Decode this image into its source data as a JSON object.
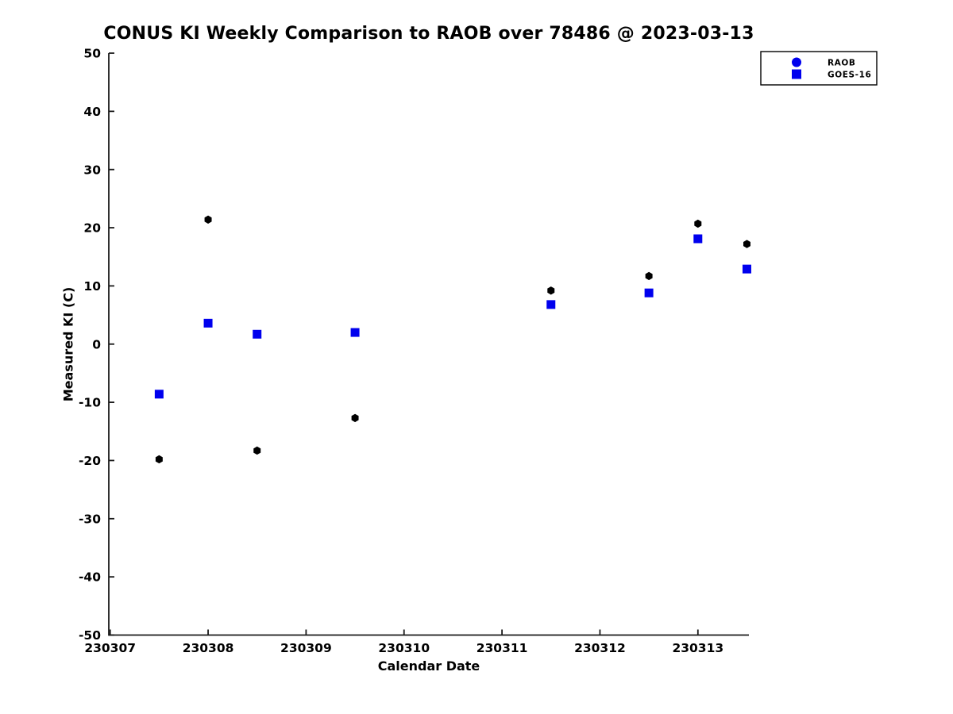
{
  "chart_data": {
    "type": "scatter",
    "title": "CONUS KI Weekly Comparison to RAOB over 78486 @ 2023-03-13",
    "xlabel": "Calendar Date",
    "ylabel": "Measured KI (C)",
    "xlim": [
      230307,
      230313.52
    ],
    "ylim": [
      -50,
      50
    ],
    "grid": false,
    "x_tick_labels": [
      "230307",
      "230308",
      "230309",
      "230310",
      "230311",
      "230312",
      "230313"
    ],
    "x_ticks": [
      230307,
      230308,
      230309,
      230310,
      230311,
      230312,
      230313
    ],
    "y_ticks": [
      50,
      40,
      30,
      20,
      10,
      0,
      -10,
      -20,
      -30,
      -40,
      -50
    ],
    "y_tick_labels": [
      "50",
      "40",
      "30",
      "20",
      "10",
      "0",
      "-10",
      "-20",
      "-30",
      "-40",
      "-50"
    ],
    "x": [
      230307.5,
      230308.0,
      230308.5,
      230309.5,
      230311.5,
      230312.5,
      230313.0,
      230313.5
    ],
    "series": [
      {
        "name": "RAOB",
        "marker": "hexagon",
        "plot_color": "#000000",
        "legend_marker": "circle",
        "legend_color": "#0000ee",
        "values": [
          -19.8,
          21.4,
          -18.3,
          -12.7,
          9.2,
          11.7,
          20.7,
          17.2
        ]
      },
      {
        "name": "GOES-16",
        "marker": "square",
        "plot_color": "#0000ee",
        "legend_marker": "square",
        "legend_color": "#0000ee",
        "values": [
          -8.6,
          3.6,
          1.7,
          2.0,
          6.8,
          8.8,
          18.1,
          12.9
        ]
      }
    ],
    "legend_position": "top-right-outside",
    "axis_color": "#1a1a1a",
    "background_color": "#ffffff"
  }
}
